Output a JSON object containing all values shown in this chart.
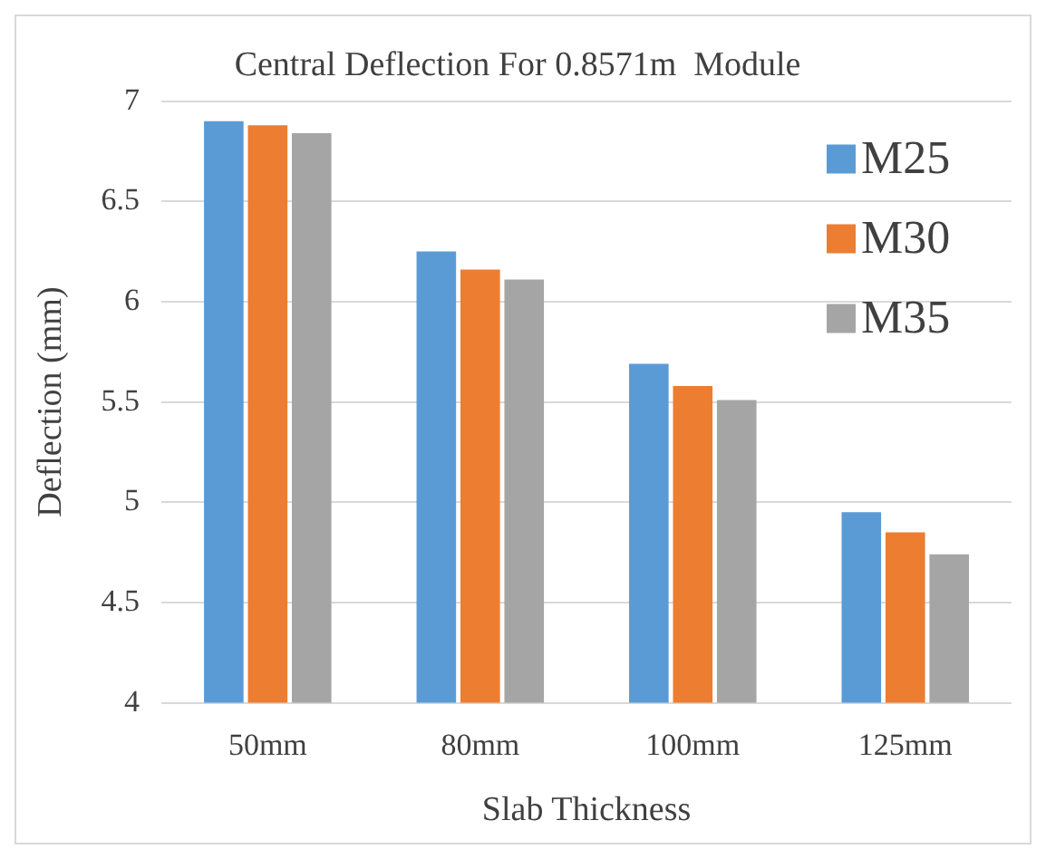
{
  "chart_data": {
    "type": "bar",
    "title": "Central Deflection For 0.8571m  Module",
    "xlabel": "Slab Thickness",
    "ylabel": "Deflection (mm)",
    "categories": [
      "50mm",
      "80mm",
      "100mm",
      "125mm"
    ],
    "series": [
      {
        "name": "M25",
        "color": "#5b9bd5",
        "values": [
          6.9,
          6.25,
          5.69,
          4.95
        ]
      },
      {
        "name": "M30",
        "color": "#ed7d31",
        "values": [
          6.88,
          6.16,
          5.58,
          4.85
        ]
      },
      {
        "name": "M35",
        "color": "#a5a5a5",
        "values": [
          6.84,
          6.11,
          5.51,
          4.74
        ]
      }
    ],
    "ylim": [
      4,
      7
    ],
    "yticks": [
      4,
      4.5,
      5,
      5.5,
      6,
      6.5,
      7
    ],
    "grid": "y",
    "legend": "top right"
  }
}
